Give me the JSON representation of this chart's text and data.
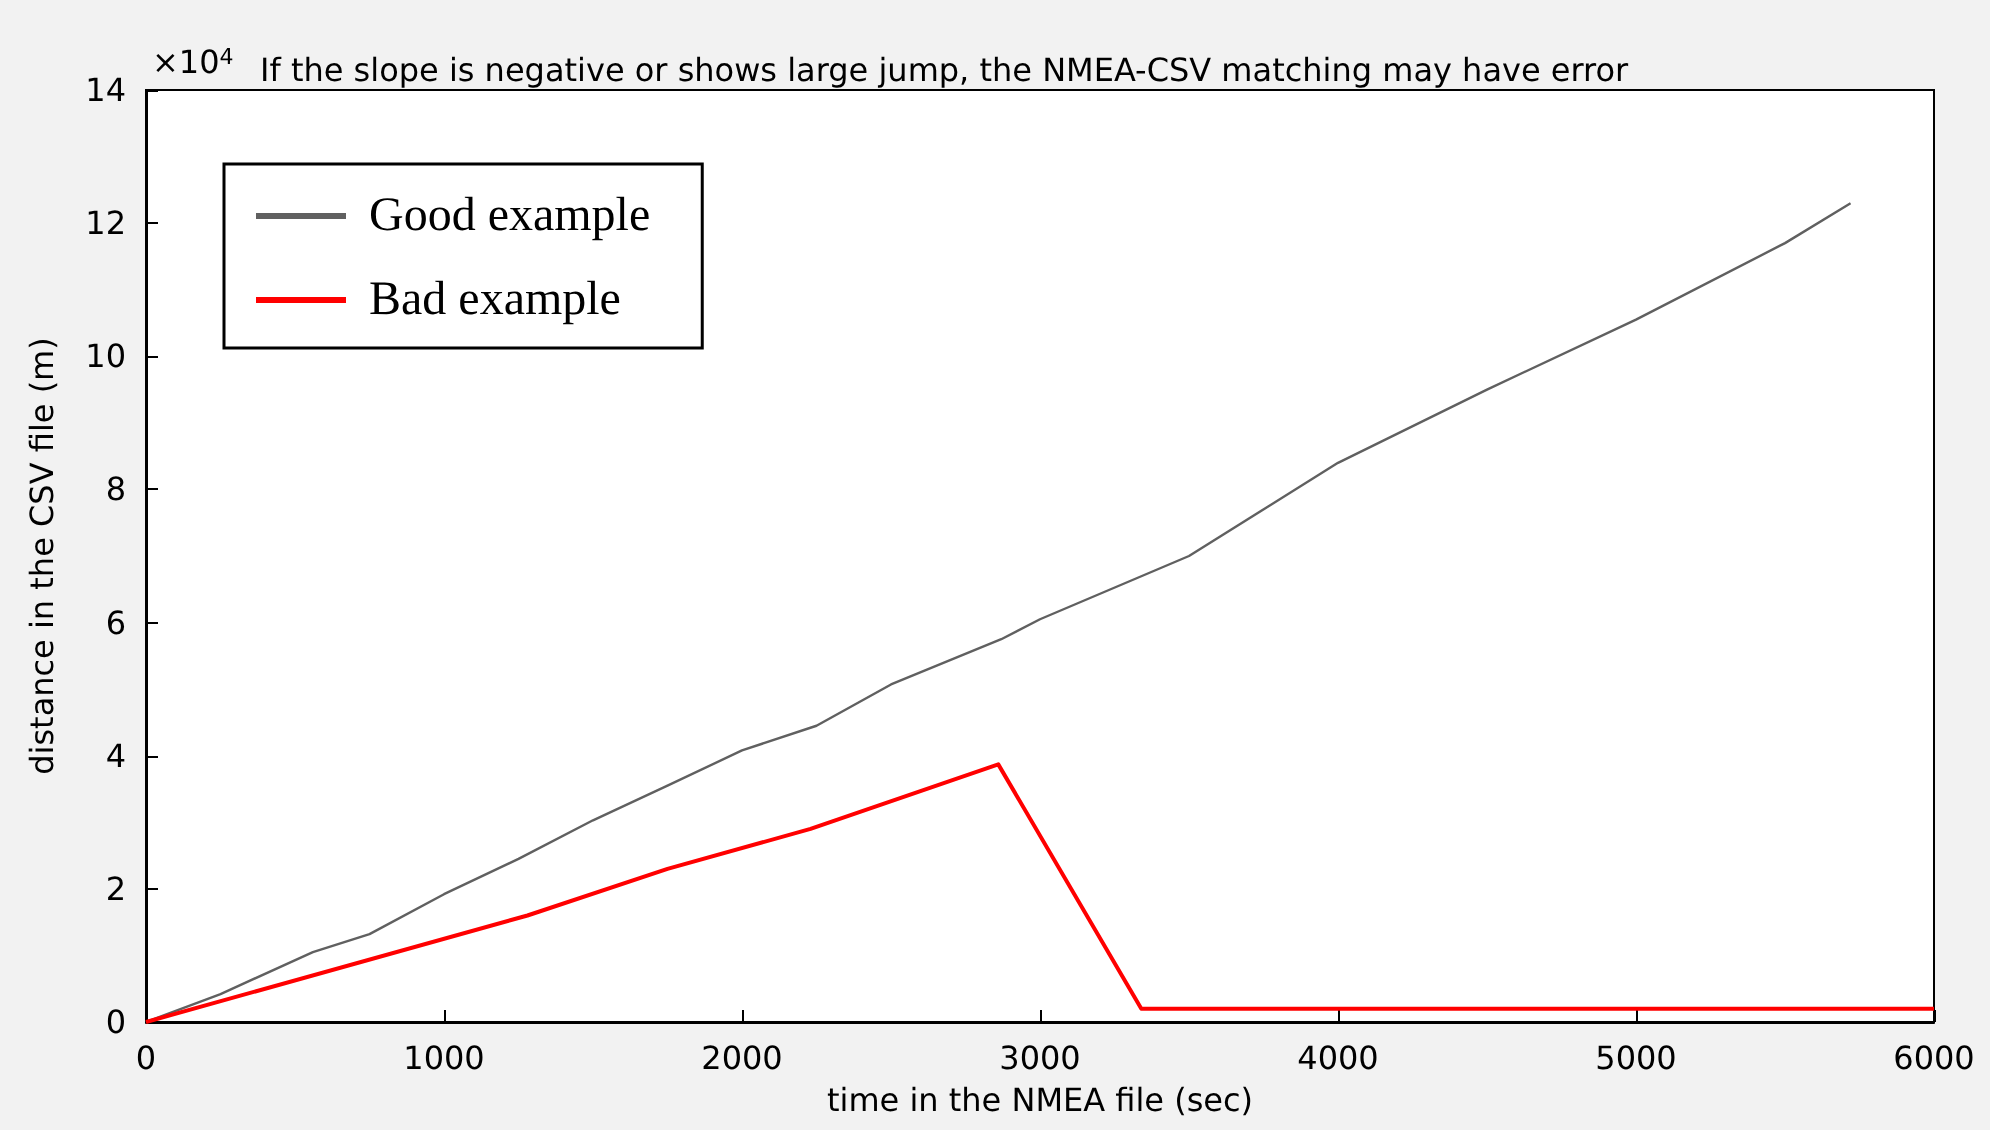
{
  "chart_data": {
    "type": "line",
    "title": "If the slope is negative or shows large jump, the NMEA-CSV matching may have error",
    "xlabel": "time in the NMEA file (sec)",
    "ylabel": "distance in the CSV file (m)",
    "annotations": [
      "×10$^{4}$"
    ],
    "xlim": [
      0,
      6000
    ],
    "xticks": [
      0,
      1000,
      2000,
      3000,
      4000,
      5000,
      6000
    ],
    "ylim": [
      0,
      14
    ],
    "yticks": [
      0,
      2,
      4,
      6,
      8,
      10,
      12,
      14
    ],
    "grid": false,
    "legend": "top left",
    "marker": "none",
    "line_style": "solid",
    "series": [
      {
        "name": "Good example",
        "color": "#606060",
        "x": [
          0,
          250,
          560,
          750,
          1000,
          1250,
          1500,
          1750,
          2000,
          2250,
          2500,
          2870,
          3000,
          3500,
          4000,
          4500,
          5000,
          5500,
          5720
        ],
        "values": [
          0,
          0.42,
          1.05,
          1.32,
          1.92,
          2.45,
          3.03,
          3.55,
          4.08,
          4.45,
          5.07,
          5.75,
          6.05,
          7.0,
          8.4,
          9.5,
          10.55,
          11.7,
          12.3
        ]
      },
      {
        "name": "Bad example",
        "color": "#ff0000",
        "x": [
          0,
          1280,
          1750,
          2230,
          2860,
          3340,
          6000
        ],
        "values": [
          0,
          1.6,
          2.3,
          2.9,
          3.87,
          0.2,
          0.2
        ]
      }
    ]
  }
}
